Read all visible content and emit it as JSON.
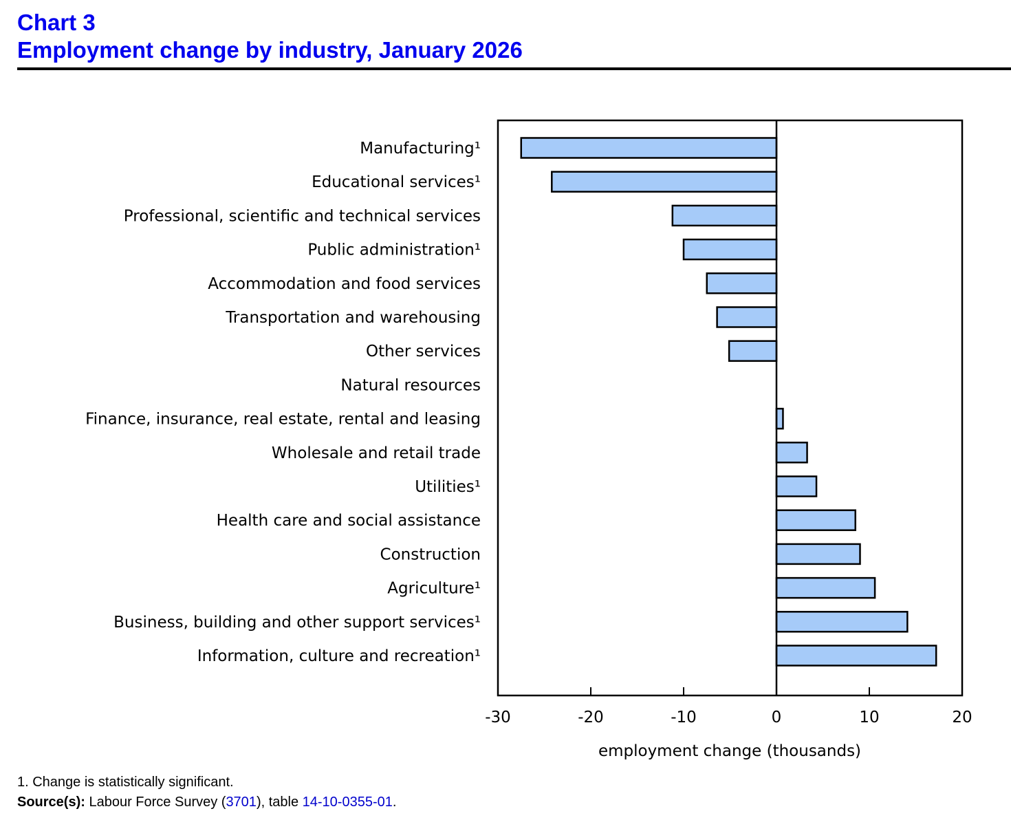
{
  "header": {
    "chart_number": "Chart 3",
    "title": "Employment change by industry, January 2026"
  },
  "footnotes": {
    "note_1": "1. Change is statistically significant.",
    "source_label": "Source(s):",
    "source_text_1": " Labour Force Survey (",
    "survey_link": "3701",
    "source_text_2": "), table ",
    "table_link": "14-10-0355-01",
    "source_text_3": "."
  },
  "colors": {
    "bar_fill": "#a6cbf9",
    "bar_stroke": "#000000",
    "title": "#0000ee",
    "link": "#0000cc"
  },
  "chart_data": {
    "type": "bar",
    "orientation": "horizontal",
    "title": "Employment change by industry, January 2026",
    "xlabel": "employment change (thousands)",
    "ylabel": "",
    "xlim": [
      -30,
      20
    ],
    "xticks": [
      -30,
      -20,
      -10,
      0,
      10,
      20
    ],
    "xtick_labels": [
      "-30",
      "-20",
      "-10",
      "0",
      "10",
      "20"
    ],
    "grid": false,
    "legend": "none",
    "categories": [
      "Manufacturing¹",
      "Educational services¹",
      "Professional, scientific and technical services",
      "Public administration¹",
      "Accommodation and food services",
      "Transportation and warehousing",
      "Other services",
      "Natural resources",
      "Finance, insurance, real estate, rental and leasing",
      "Wholesale and retail trade",
      "Utilities¹",
      "Health care and social assistance",
      "Construction",
      "Agriculture¹",
      "Business, building and other support services¹",
      "Information, culture and recreation¹"
    ],
    "values": [
      -27.5,
      -24.2,
      -11.2,
      -10.0,
      -7.5,
      -6.4,
      -5.1,
      0.0,
      0.7,
      3.3,
      4.3,
      8.5,
      9.0,
      10.6,
      14.1,
      17.2
    ],
    "footnote_marker": "¹ = change is statistically significant"
  }
}
